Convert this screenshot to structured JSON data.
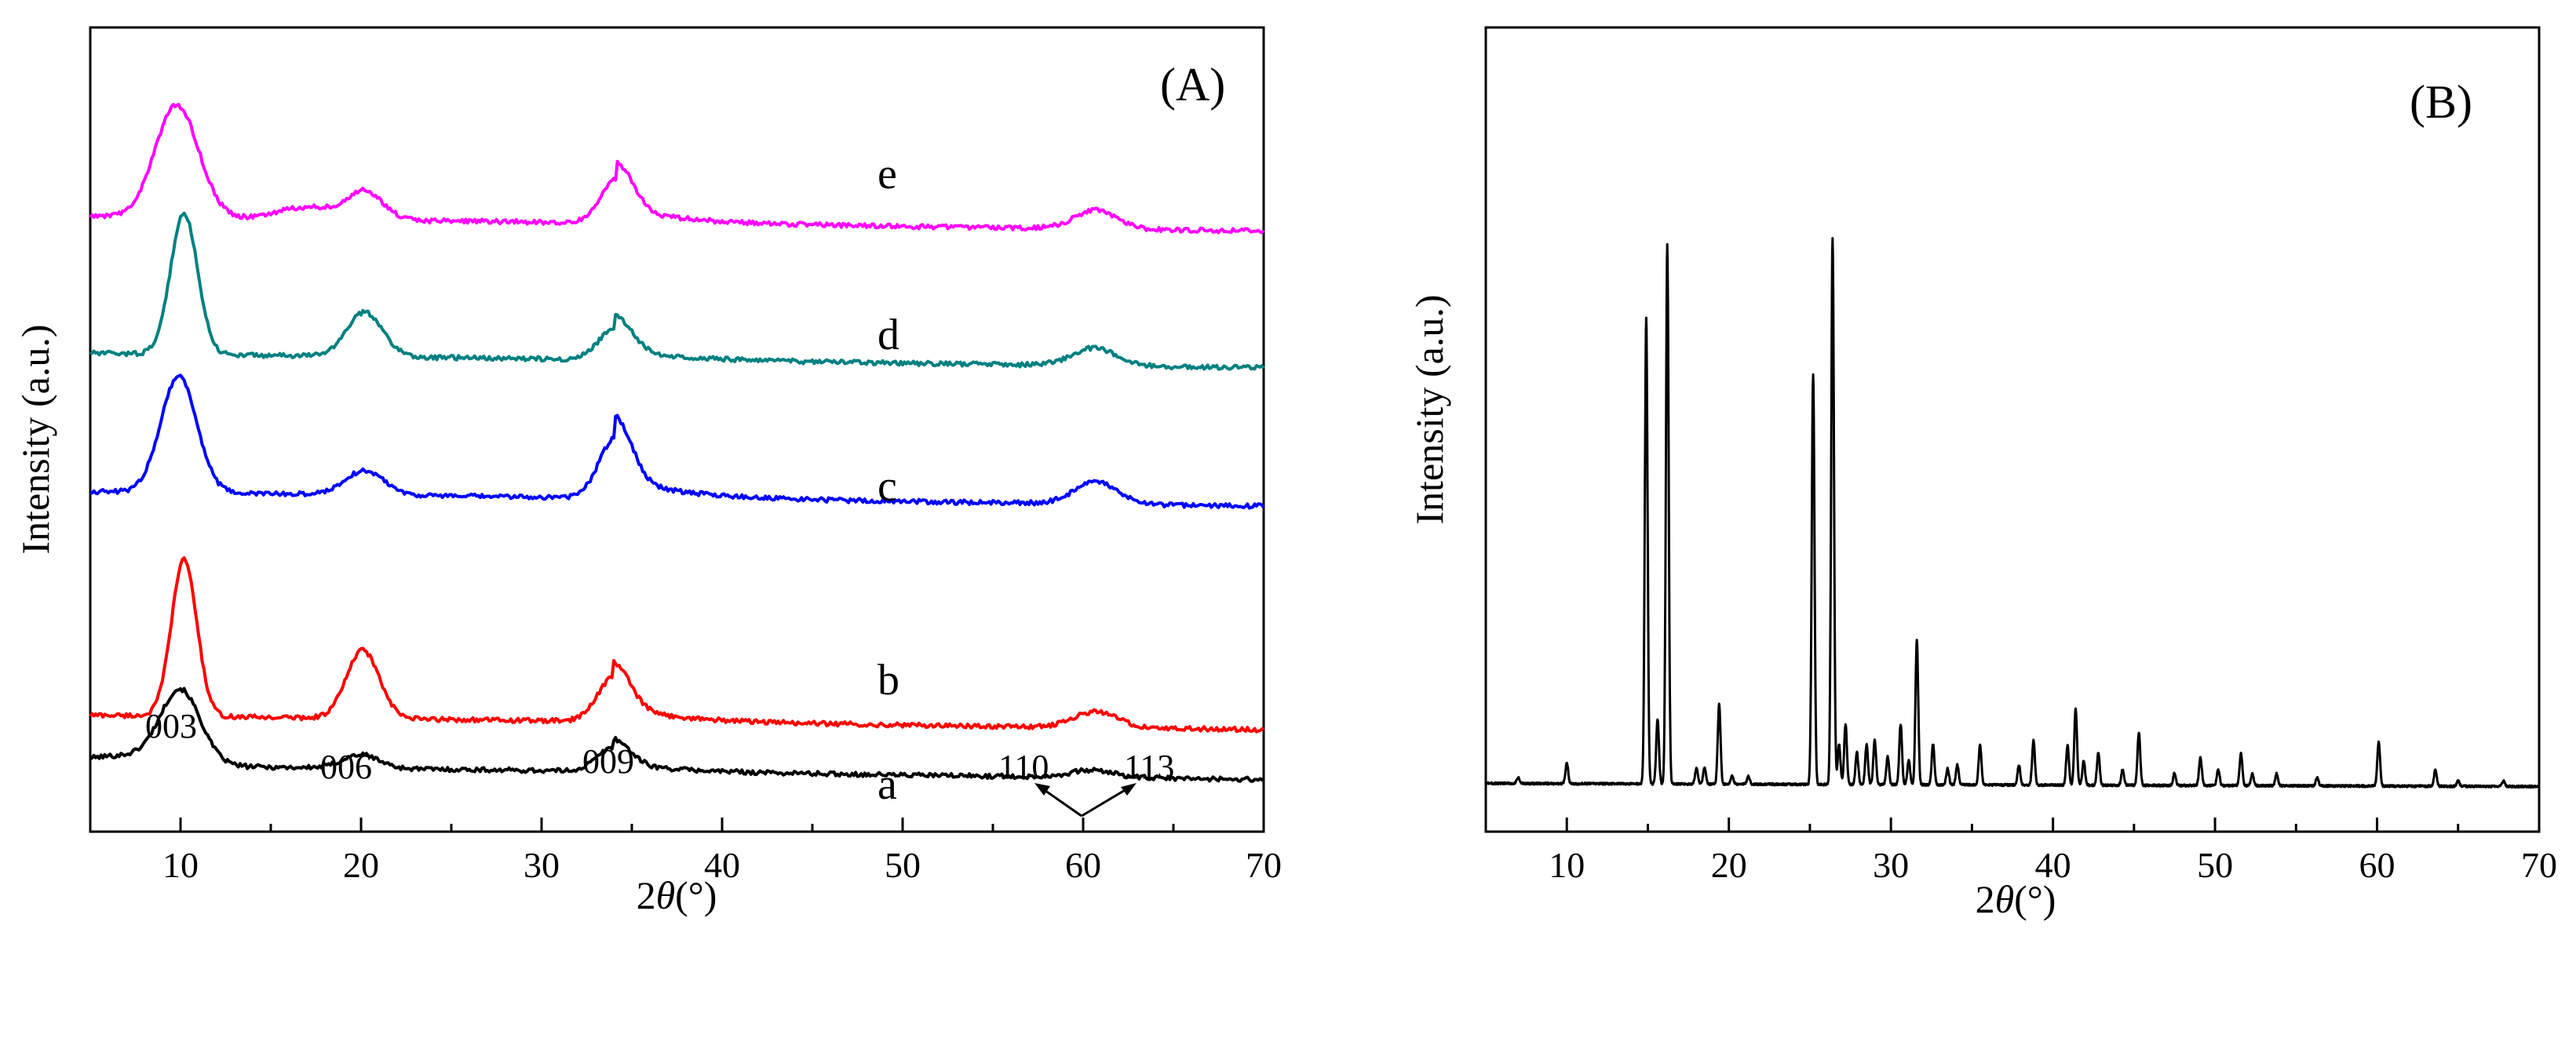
{
  "chart_data": [
    {
      "type": "line",
      "panel_label": "(A)",
      "xlabel_prefix": "2",
      "xlabel_theta": "θ",
      "xlabel_suffix": "(°)",
      "ylabel": "Intensity (a.u.)",
      "xlim": [
        5,
        70
      ],
      "ylim": [
        0,
        100
      ],
      "x_ticks": [
        10,
        20,
        30,
        40,
        50,
        60,
        70
      ],
      "y_ticks": [],
      "series": [
        {
          "name": "a",
          "color": "#000000",
          "baseline": [
            8.3,
            0.0
          ],
          "peaks": [
            [
              10.0,
              1.1,
              9.0
            ],
            [
              20.0,
              1.0,
              1.7
            ],
            [
              34.0,
              0.9,
              3.0
            ],
            [
              60.5,
              1.2,
              0.9
            ]
          ],
          "bumps": [
            [
              7.0,
              2.5,
              1.2
            ]
          ]
        },
        {
          "name": "b",
          "color": "#ff0000",
          "baseline": [
            14.5,
            0.0
          ],
          "peaks": [
            [
              10.2,
              0.7,
              19.5
            ],
            [
              20.1,
              0.9,
              8.5
            ],
            [
              34.0,
              0.9,
              5.5
            ],
            [
              60.7,
              1.2,
              2.0
            ]
          ],
          "bumps": []
        },
        {
          "name": "c",
          "color": "#0000ff",
          "baseline": [
            42.3,
            0.0
          ],
          "peaks": [
            [
              9.9,
              1.0,
              14.5
            ],
            [
              20.2,
              1.1,
              3.0
            ],
            [
              34.1,
              0.9,
              7.5
            ],
            [
              60.7,
              1.2,
              2.7
            ]
          ],
          "bumps": []
        },
        {
          "name": "d",
          "color": "#008080",
          "baseline": [
            59.5,
            0.0
          ],
          "peaks": [
            [
              10.2,
              0.75,
              17.5
            ],
            [
              20.2,
              1.0,
              5.5
            ],
            [
              34.1,
              0.9,
              4.0
            ],
            [
              60.6,
              1.2,
              2.2
            ]
          ],
          "bumps": []
        },
        {
          "name": "e",
          "color": "#ff00ff",
          "baseline": [
            76.5,
            0.0
          ],
          "peaks": [
            [
              9.8,
              1.2,
              14.0
            ],
            [
              20.2,
              1.0,
              3.5
            ],
            [
              34.2,
              0.9,
              5.5
            ],
            [
              60.7,
              1.2,
              2.3
            ]
          ],
          "bumps": [
            [
              17.0,
              1.5,
              1.5
            ]
          ]
        }
      ],
      "peak_labels": [
        "003",
        "006",
        "009",
        "110",
        "113"
      ]
    },
    {
      "type": "line",
      "panel_label": "(B)",
      "xlabel_prefix": "2",
      "xlabel_theta": "θ",
      "xlabel_suffix": "(°)",
      "ylabel": "Intensity (a.u.)",
      "xlim": [
        5,
        70
      ],
      "ylim": [
        0,
        100
      ],
      "x_ticks": [
        10,
        20,
        30,
        40,
        50,
        60,
        70
      ],
      "y_ticks": [],
      "series": [
        {
          "name": "B",
          "color": "#000000",
          "baseline": 6.0,
          "peaks": [
            [
              7.0,
              0.7
            ],
            [
              10.0,
              2.5
            ],
            [
              14.9,
              58.0
            ],
            [
              15.6,
              8.0
            ],
            [
              16.2,
              67.0
            ],
            [
              18.0,
              2.0
            ],
            [
              18.5,
              2.0
            ],
            [
              19.4,
              10.0
            ],
            [
              20.2,
              1.0
            ],
            [
              21.2,
              1.0
            ],
            [
              25.2,
              51.0
            ],
            [
              26.4,
              68.0
            ],
            [
              26.8,
              5.0
            ],
            [
              27.2,
              7.5
            ],
            [
              27.9,
              4.0
            ],
            [
              28.5,
              5.0
            ],
            [
              29.0,
              5.5
            ],
            [
              29.8,
              3.5
            ],
            [
              30.6,
              7.5
            ],
            [
              31.1,
              3.0
            ],
            [
              31.6,
              18.0
            ],
            [
              32.6,
              5.0
            ],
            [
              33.5,
              2.0
            ],
            [
              34.1,
              2.5
            ],
            [
              35.5,
              5.0
            ],
            [
              37.9,
              2.5
            ],
            [
              38.8,
              5.5
            ],
            [
              40.9,
              5.0
            ],
            [
              41.4,
              9.5
            ],
            [
              41.9,
              3.0
            ],
            [
              42.8,
              4.0
            ],
            [
              44.3,
              2.0
            ],
            [
              45.3,
              6.5
            ],
            [
              47.5,
              1.5
            ],
            [
              49.1,
              3.5
            ],
            [
              50.2,
              2.0
            ],
            [
              51.6,
              4.0
            ],
            [
              52.3,
              1.5
            ],
            [
              53.8,
              1.5
            ],
            [
              56.3,
              1.0
            ],
            [
              60.1,
              5.5
            ],
            [
              63.6,
              2.0
            ],
            [
              65.0,
              0.7
            ],
            [
              67.8,
              0.7
            ]
          ]
        }
      ]
    }
  ],
  "annotations": {
    "curve_labels": [
      "a",
      "b",
      "c",
      "d",
      "e"
    ]
  }
}
